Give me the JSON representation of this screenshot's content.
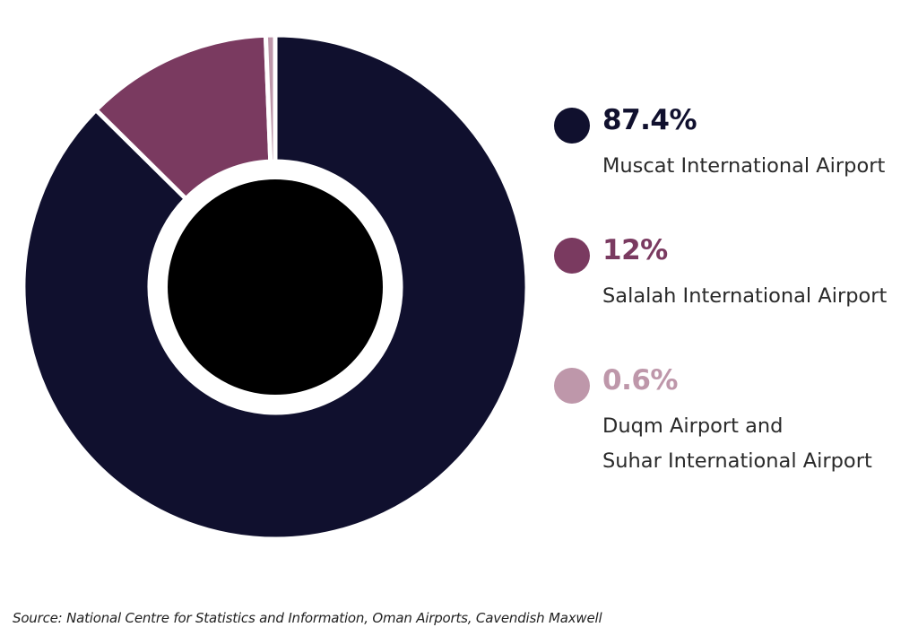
{
  "chart_data": {
    "type": "pie",
    "series": [
      {
        "name": "Muscat International Airport",
        "value_label": "87.4%",
        "value": 87.4,
        "color": "#10102e"
      },
      {
        "name": "Salalah International Airport",
        "value_label": "12%",
        "value": 12,
        "color": "#7a3a60"
      },
      {
        "name": "Duqm Airport and\nSuhar International Airport",
        "value_label": "0.6%",
        "value": 0.6,
        "color": "#be97aa"
      }
    ],
    "legend_position": "right",
    "center_color": "#000000"
  },
  "source": "Source: National Centre for Statistics and Information, Oman Airports, Cavendish Maxwell"
}
